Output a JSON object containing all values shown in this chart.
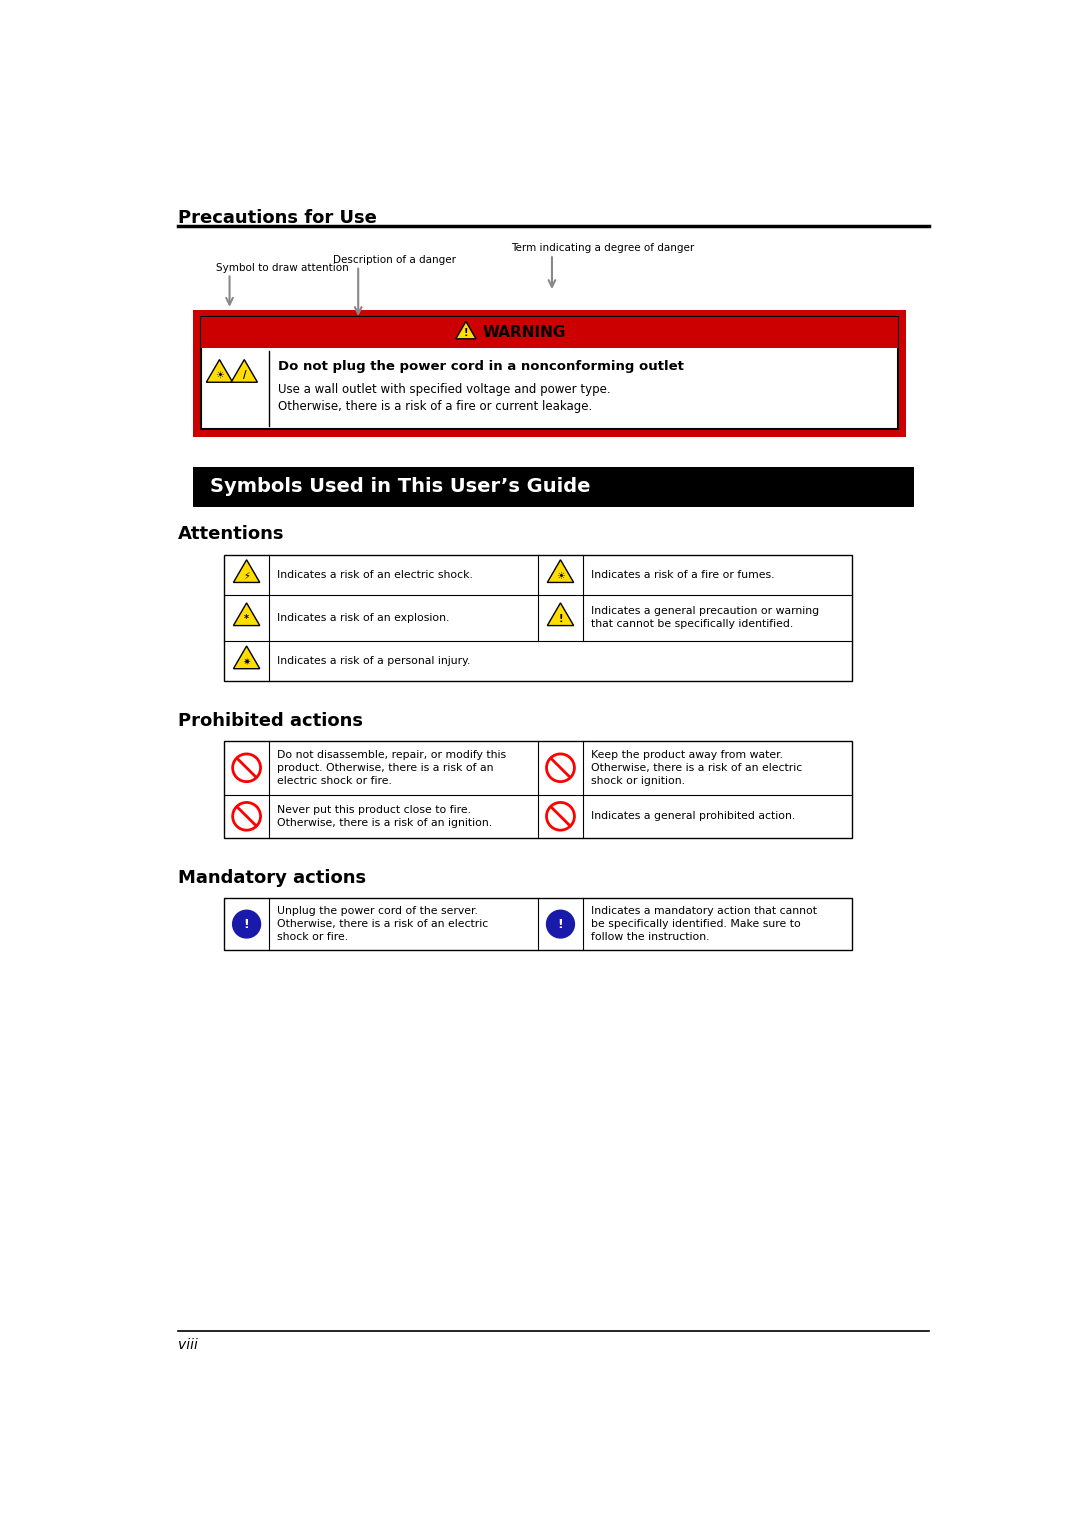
{
  "page_title": "Precautions for Use",
  "section2_title": "Symbols Used in This User’s Guide",
  "attentions_title": "Attentions",
  "prohibited_title": "Prohibited actions",
  "mandatory_title": "Mandatory actions",
  "warning_text": "WARNING",
  "warning_bold": "Do not plug the power cord in a nonconforming outlet",
  "warning_body1": "Use a wall outlet with specified voltage and power type.",
  "warning_body2": "Otherwise, there is a risk of a fire or current leakage.",
  "label_symbol": "Symbol to draw attention",
  "label_description": "Description of a danger",
  "label_term": "Term indicating a degree of danger",
  "att_texts": [
    [
      "Indicates a risk of an electric shock.",
      "Indicates a risk of a fire or fumes."
    ],
    [
      "Indicates a risk of an explosion.",
      "Indicates a general precaution or warning\nthat cannot be specifically identified."
    ],
    [
      "Indicates a risk of a personal injury.",
      ""
    ]
  ],
  "proh_texts": [
    [
      "Do not disassemble, repair, or modify this\nproduct. Otherwise, there is a risk of an\nelectric shock or fire.",
      "Keep the product away from water.\nOtherwise, there is a risk of an electric\nshock or ignition."
    ],
    [
      "Never put this product close to fire.\nOtherwise, there is a risk of an ignition.",
      "Indicates a general prohibited action."
    ]
  ],
  "mand_texts": [
    [
      "Unplug the power cord of the server.\nOtherwise, there is a risk of an electric\nshock or fire.",
      "Indicates a mandatory action that cannot\nbe specifically identified. Make sure to\nfollow the instruction."
    ]
  ],
  "bg_color": "#ffffff",
  "red_color": "#cc0000",
  "black_color": "#000000",
  "yellow_color": "#ffdd00",
  "blue_color": "#1a1aaa",
  "page_footer": "viii"
}
